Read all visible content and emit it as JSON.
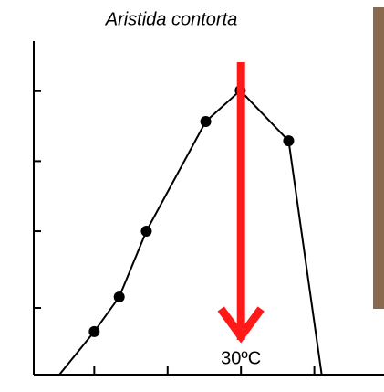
{
  "chart_data": {
    "type": "line",
    "title": "Aristida contorta",
    "x": [
      10,
      13.4,
      17.1,
      25.2,
      29.9,
      36.5
    ],
    "values": [
      12.9,
      23.3,
      43,
      75.9,
      85.2,
      70.1
    ],
    "line_start": {
      "x": 5.25,
      "value": 0
    },
    "line_end": {
      "x": 41,
      "value": 0
    },
    "color": "#000000",
    "xlim": [
      1.75,
      49.5
    ],
    "xticks": [
      10,
      20,
      30,
      40
    ],
    "ylim": [
      0,
      100
    ],
    "yticks": [
      20,
      43,
      64,
      85
    ],
    "annotation": {
      "text": "30ºC",
      "x": 30,
      "color": "#ff1a1a"
    }
  }
}
